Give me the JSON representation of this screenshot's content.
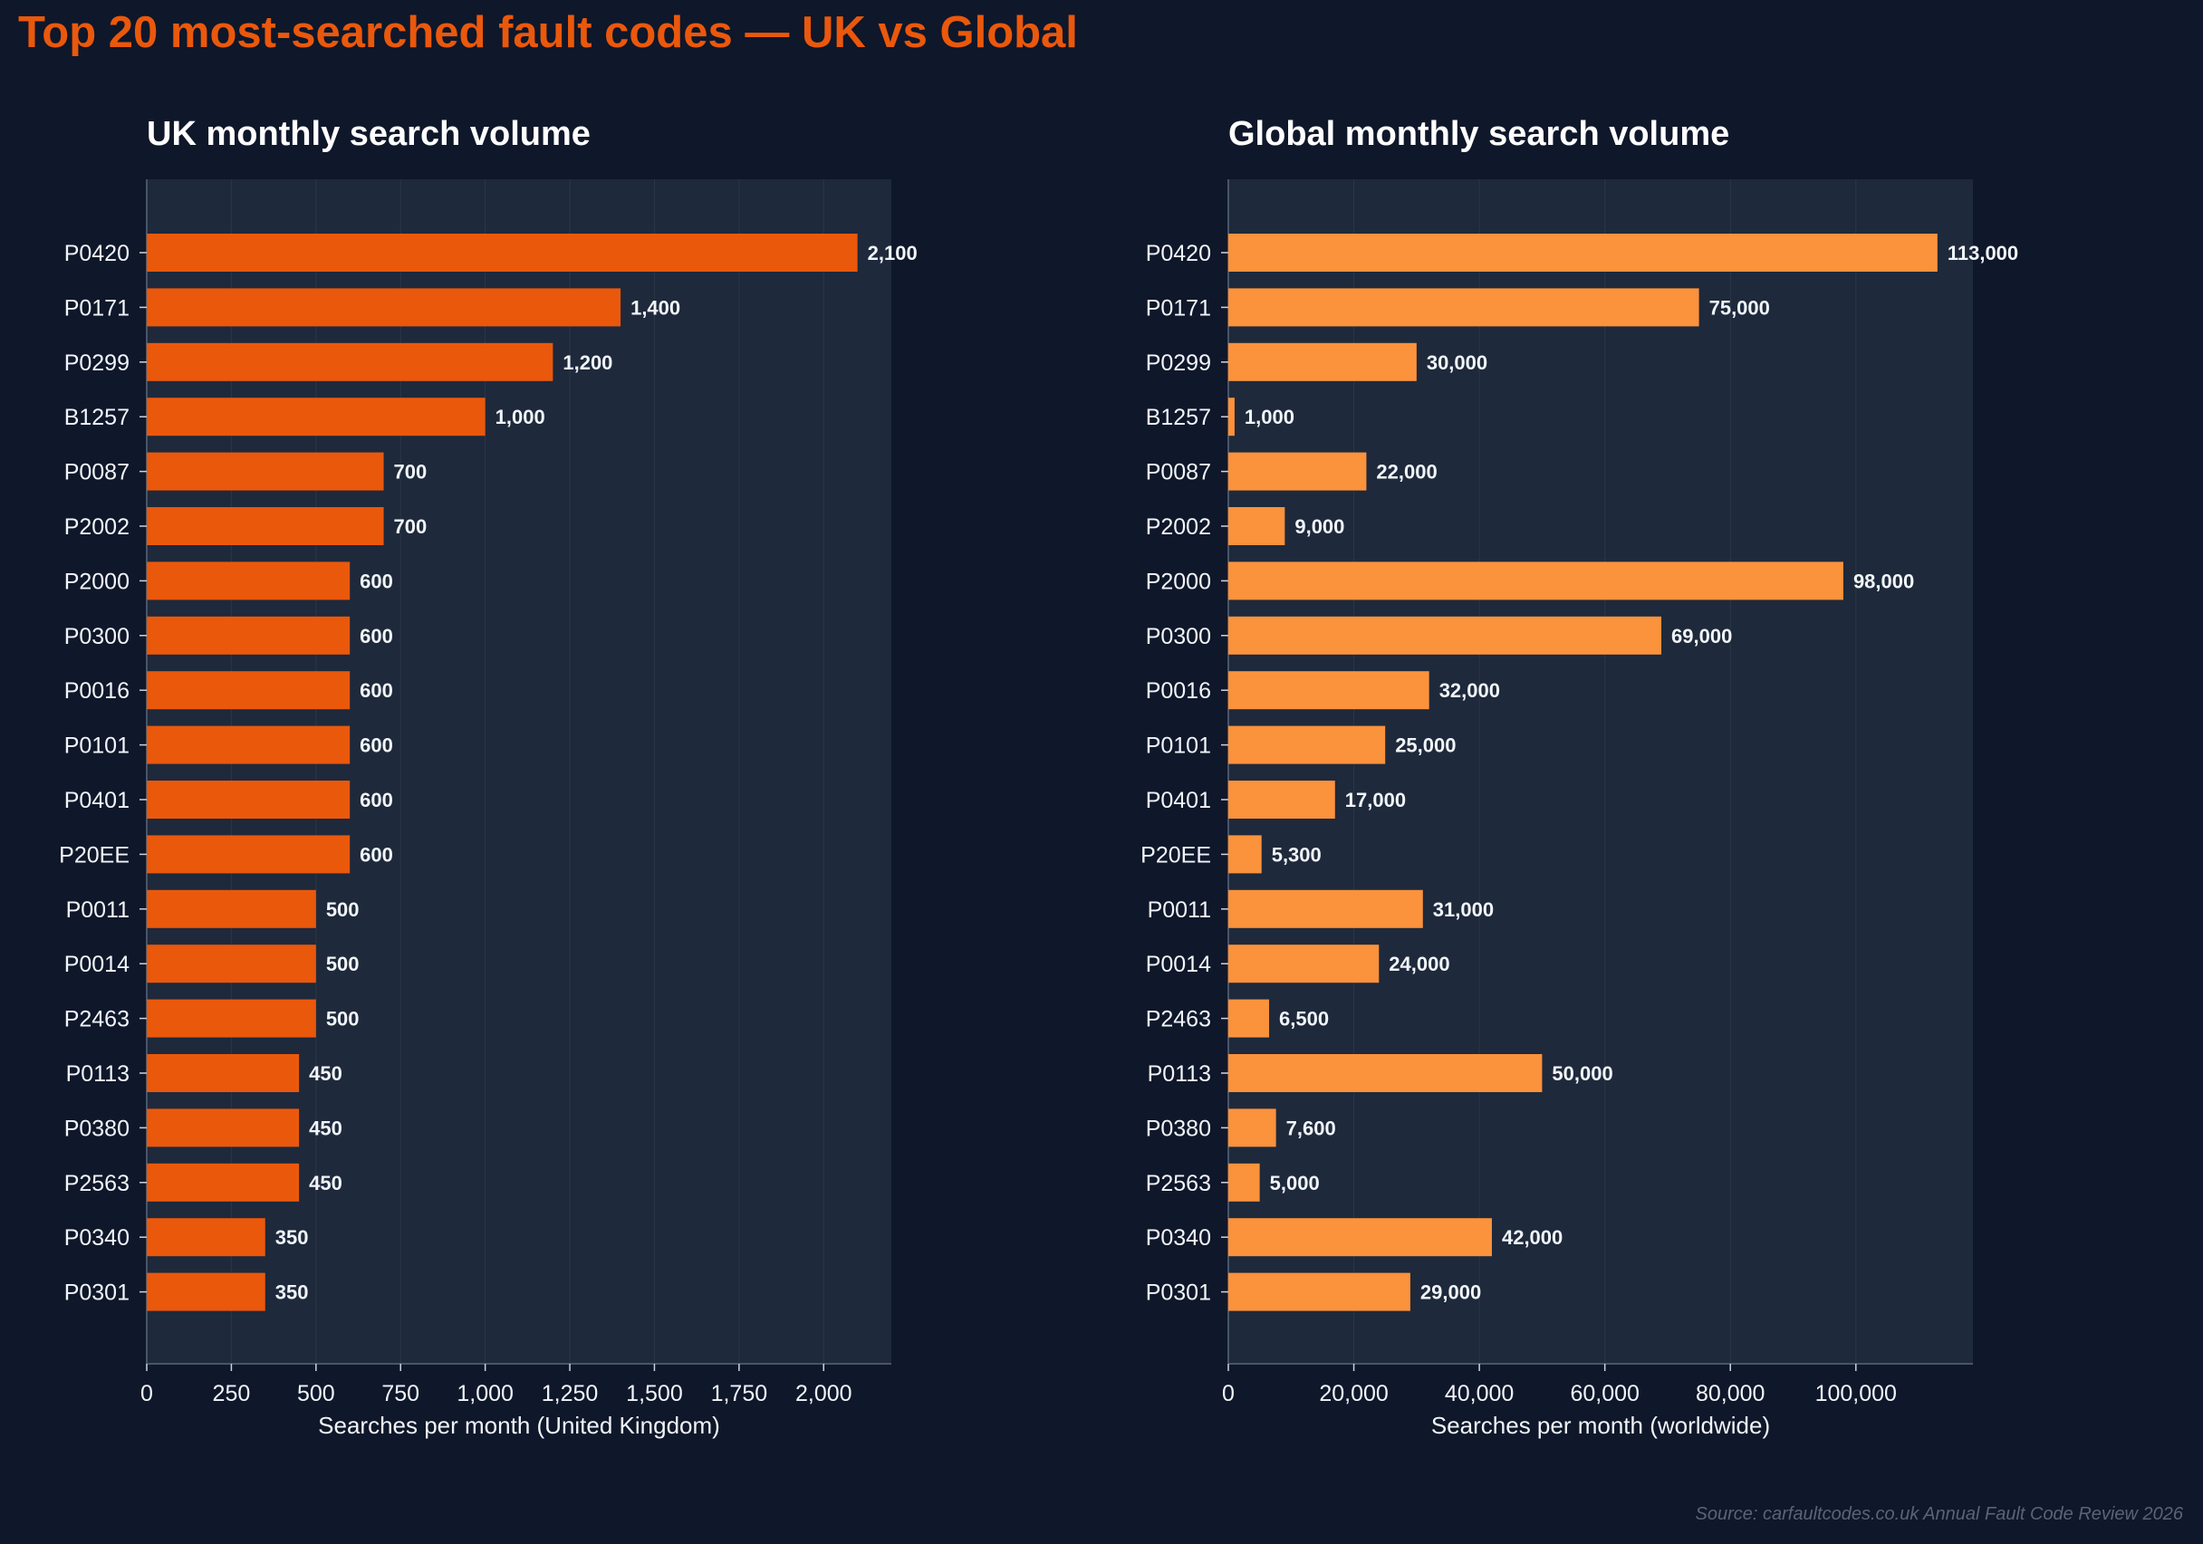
{
  "title": "Top 20 most-searched fault codes — UK vs Global",
  "source": "Source: carfaultcodes.co.uk Annual Fault Code Review 2026",
  "colors": {
    "background": "#0f172a",
    "panel": "#1e293b",
    "title": "#ea580c",
    "uk_bar": "#ea580c",
    "global_bar": "#fb923c",
    "text": "#f1f5f9",
    "axis": "#475569"
  },
  "chart_data": [
    {
      "type": "bar",
      "orientation": "horizontal",
      "title": "UK monthly search volume",
      "xlabel": "Searches per month (United Kingdom)",
      "ylabel": "",
      "xlim": [
        0,
        2200
      ],
      "xticks": [
        0,
        250,
        500,
        750,
        1000,
        1250,
        1500,
        1750,
        2000
      ],
      "xtick_labels": [
        "0",
        "250",
        "500",
        "750",
        "1,000",
        "1,250",
        "1,500",
        "1,750",
        "2,000"
      ],
      "grid": true,
      "categories": [
        "P0420",
        "P0171",
        "P0299",
        "B1257",
        "P0087",
        "P2002",
        "P2000",
        "P0300",
        "P0016",
        "P0101",
        "P0401",
        "P20EE",
        "P0011",
        "P0014",
        "P2463",
        "P0113",
        "P0380",
        "P2563",
        "P0340",
        "P0301"
      ],
      "values": [
        2100,
        1400,
        1200,
        1000,
        700,
        700,
        600,
        600,
        600,
        600,
        600,
        600,
        500,
        500,
        500,
        450,
        450,
        450,
        350,
        350
      ],
      "value_labels": [
        "2,100",
        "1,400",
        "1,200",
        "1,000",
        "700",
        "700",
        "600",
        "600",
        "600",
        "600",
        "600",
        "600",
        "500",
        "500",
        "500",
        "450",
        "450",
        "450",
        "350",
        "350"
      ],
      "color": "#ea580c"
    },
    {
      "type": "bar",
      "orientation": "horizontal",
      "title": "Global monthly search volume",
      "xlabel": "Searches per month (worldwide)",
      "ylabel": "",
      "xlim": [
        0,
        118650
      ],
      "xticks": [
        0,
        20000,
        40000,
        60000,
        80000,
        100000
      ],
      "xtick_labels": [
        "0",
        "20,000",
        "40,000",
        "60,000",
        "80,000",
        "100,000"
      ],
      "grid": true,
      "categories": [
        "P0420",
        "P0171",
        "P0299",
        "B1257",
        "P0087",
        "P2002",
        "P2000",
        "P0300",
        "P0016",
        "P0101",
        "P0401",
        "P20EE",
        "P0011",
        "P0014",
        "P2463",
        "P0113",
        "P0380",
        "P2563",
        "P0340",
        "P0301"
      ],
      "values": [
        113000,
        75000,
        30000,
        1000,
        22000,
        9000,
        98000,
        69000,
        32000,
        25000,
        17000,
        5300,
        31000,
        24000,
        6500,
        50000,
        7600,
        5000,
        42000,
        29000
      ],
      "value_labels": [
        "113,000",
        "75,000",
        "30,000",
        "1,000",
        "22,000",
        "9,000",
        "98,000",
        "69,000",
        "32,000",
        "25,000",
        "17,000",
        "5,300",
        "31,000",
        "24,000",
        "6,500",
        "50,000",
        "7,600",
        "5,000",
        "42,000",
        "29,000"
      ],
      "color": "#fb923c"
    }
  ]
}
